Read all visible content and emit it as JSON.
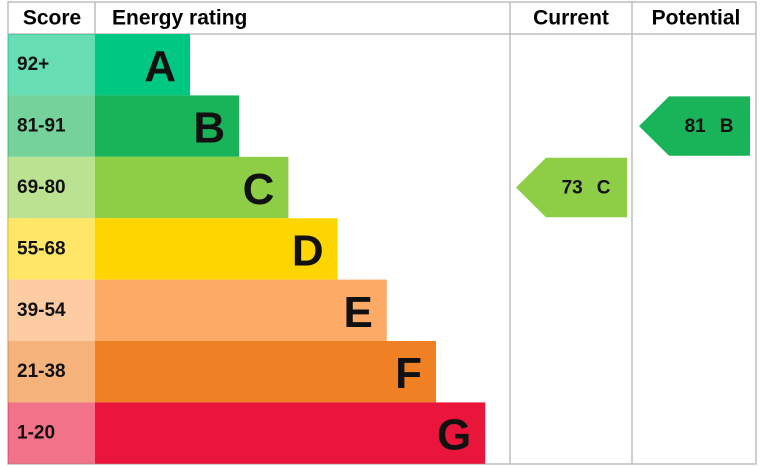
{
  "header": {
    "score": "Score",
    "rating": "Energy rating",
    "current": "Current",
    "potential": "Potential"
  },
  "bands": [
    {
      "score": "92+",
      "letter": "A",
      "color": "#00c781"
    },
    {
      "score": "81-91",
      "letter": "B",
      "color": "#19b459"
    },
    {
      "score": "69-80",
      "letter": "C",
      "color": "#8dce46"
    },
    {
      "score": "55-68",
      "letter": "D",
      "color": "#ffd500"
    },
    {
      "score": "39-54",
      "letter": "E",
      "color": "#fcaa65"
    },
    {
      "score": "21-38",
      "letter": "F",
      "color": "#ef8023"
    },
    {
      "score": "1-20",
      "letter": "G",
      "color": "#e9153b"
    }
  ],
  "current": {
    "score": 73,
    "rating": "C"
  },
  "potential": {
    "score": 81,
    "rating": "B"
  }
}
